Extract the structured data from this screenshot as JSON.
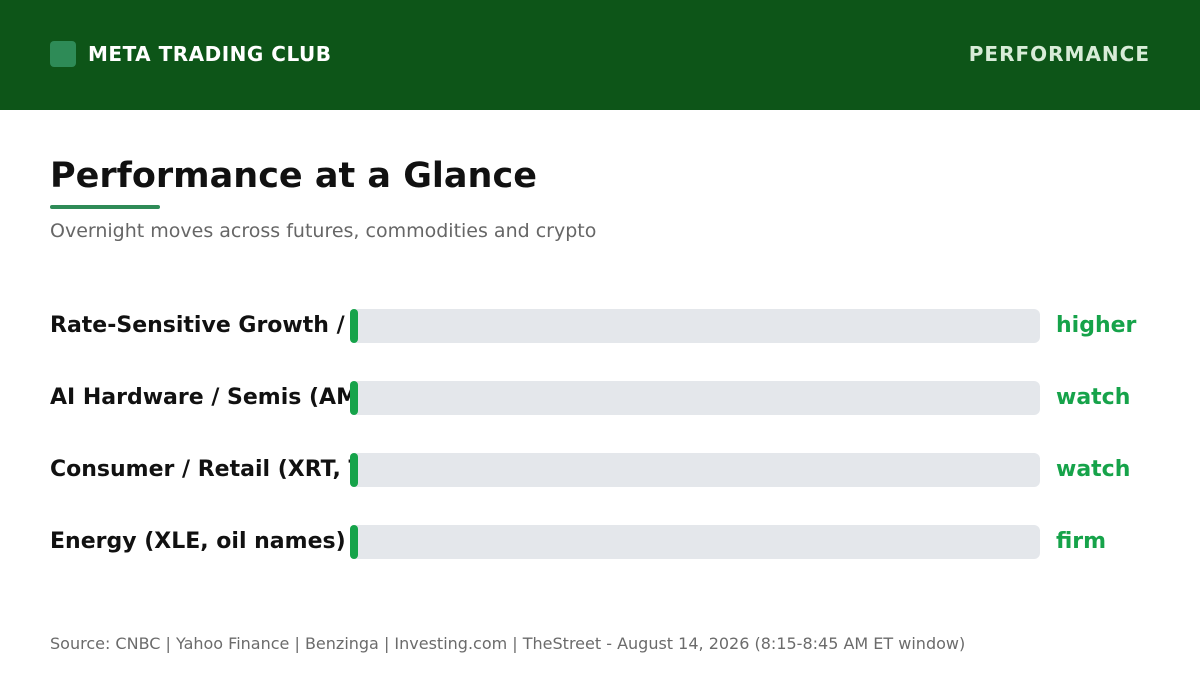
{
  "header": {
    "brand_name": "META TRADING CLUB",
    "section_label": "PERFORMANCE",
    "logo_icon": "rounded-square-logo",
    "background_color": "#0d5518",
    "logo_color": "#2e8b57"
  },
  "page": {
    "title": "Performance at a Glance",
    "subtitle": "Overnight moves across futures, commodities and crypto",
    "accent_color": "#2e8b57"
  },
  "rows": [
    {
      "label": "Rate-Sensitive Growth / Biotech (XBI, ARKK)",
      "status": "higher"
    },
    {
      "label": "AI Hardware / Semis (AMAT, NVDA)",
      "status": "watch"
    },
    {
      "label": "Consumer / Retail (XRT, TGT)",
      "status": "watch"
    },
    {
      "label": "Energy (XLE, oil names)",
      "status": "firm"
    }
  ],
  "status_color": "#16a34a",
  "footer": {
    "source": "Source: CNBC | Yahoo Finance | Benzinga | Investing.com | TheStreet - August 14, 2026 (8:15-8:45 AM ET window)"
  }
}
